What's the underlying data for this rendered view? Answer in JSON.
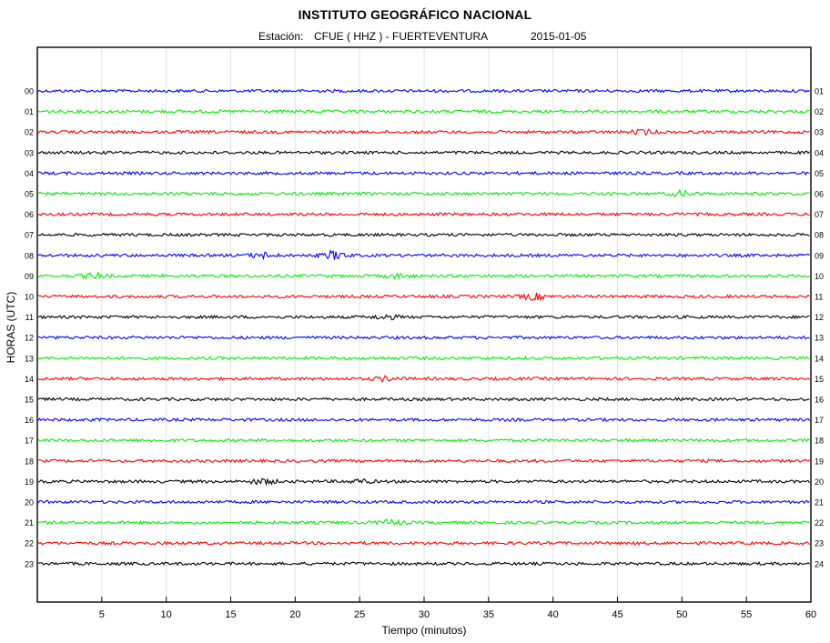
{
  "header": {
    "title": "INSTITUTO GEOGRÁFICO NACIONAL",
    "station_prefix": "Estación:",
    "station_name": "CFUE ( HHZ ) - FUERTEVENTURA",
    "date": "2015-01-05"
  },
  "chart_data": {
    "type": "line",
    "title": "INSTITUTO GEOGRÁFICO NACIONAL",
    "xlabel": "Tiempo (minutos)",
    "ylabel": "HORAS (UTC)",
    "xlim": [
      0,
      60
    ],
    "x_ticks": [
      "5",
      "10",
      "15",
      "20",
      "25",
      "30",
      "35",
      "40",
      "45",
      "50",
      "55",
      "60"
    ],
    "grid": true,
    "left_labels": [
      "00",
      "01",
      "02",
      "03",
      "04",
      "05",
      "06",
      "07",
      "08",
      "09",
      "10",
      "11",
      "12",
      "13",
      "14",
      "15",
      "16",
      "17",
      "18",
      "19",
      "20",
      "21",
      "22",
      "23"
    ],
    "right_labels": [
      "01",
      "02",
      "03",
      "04",
      "05",
      "06",
      "07",
      "08",
      "09",
      "10",
      "11",
      "12",
      "13",
      "14",
      "15",
      "16",
      "17",
      "18",
      "19",
      "20",
      "21",
      "22",
      "23",
      "24"
    ],
    "trace_colors": [
      "#0000ff",
      "#00ee00",
      "#ff0000",
      "#000000"
    ],
    "events": [
      {
        "row": 2,
        "minute": 47,
        "amp": 2
      },
      {
        "row": 5,
        "minute": 50,
        "amp": 2.5
      },
      {
        "row": 8,
        "minute": 17.5,
        "amp": 2.5
      },
      {
        "row": 8,
        "minute": 23,
        "amp": 4
      },
      {
        "row": 9,
        "minute": 4.5,
        "amp": 2.5
      },
      {
        "row": 9,
        "minute": 28,
        "amp": 1.8
      },
      {
        "row": 10,
        "minute": 38.5,
        "amp": 3
      },
      {
        "row": 11,
        "minute": 27,
        "amp": 2
      },
      {
        "row": 14,
        "minute": 27,
        "amp": 2
      },
      {
        "row": 19,
        "minute": 17.5,
        "amp": 2.5
      },
      {
        "row": 19,
        "minute": 25,
        "amp": 1.8
      },
      {
        "row": 21,
        "minute": 27.5,
        "amp": 2.5
      }
    ]
  }
}
